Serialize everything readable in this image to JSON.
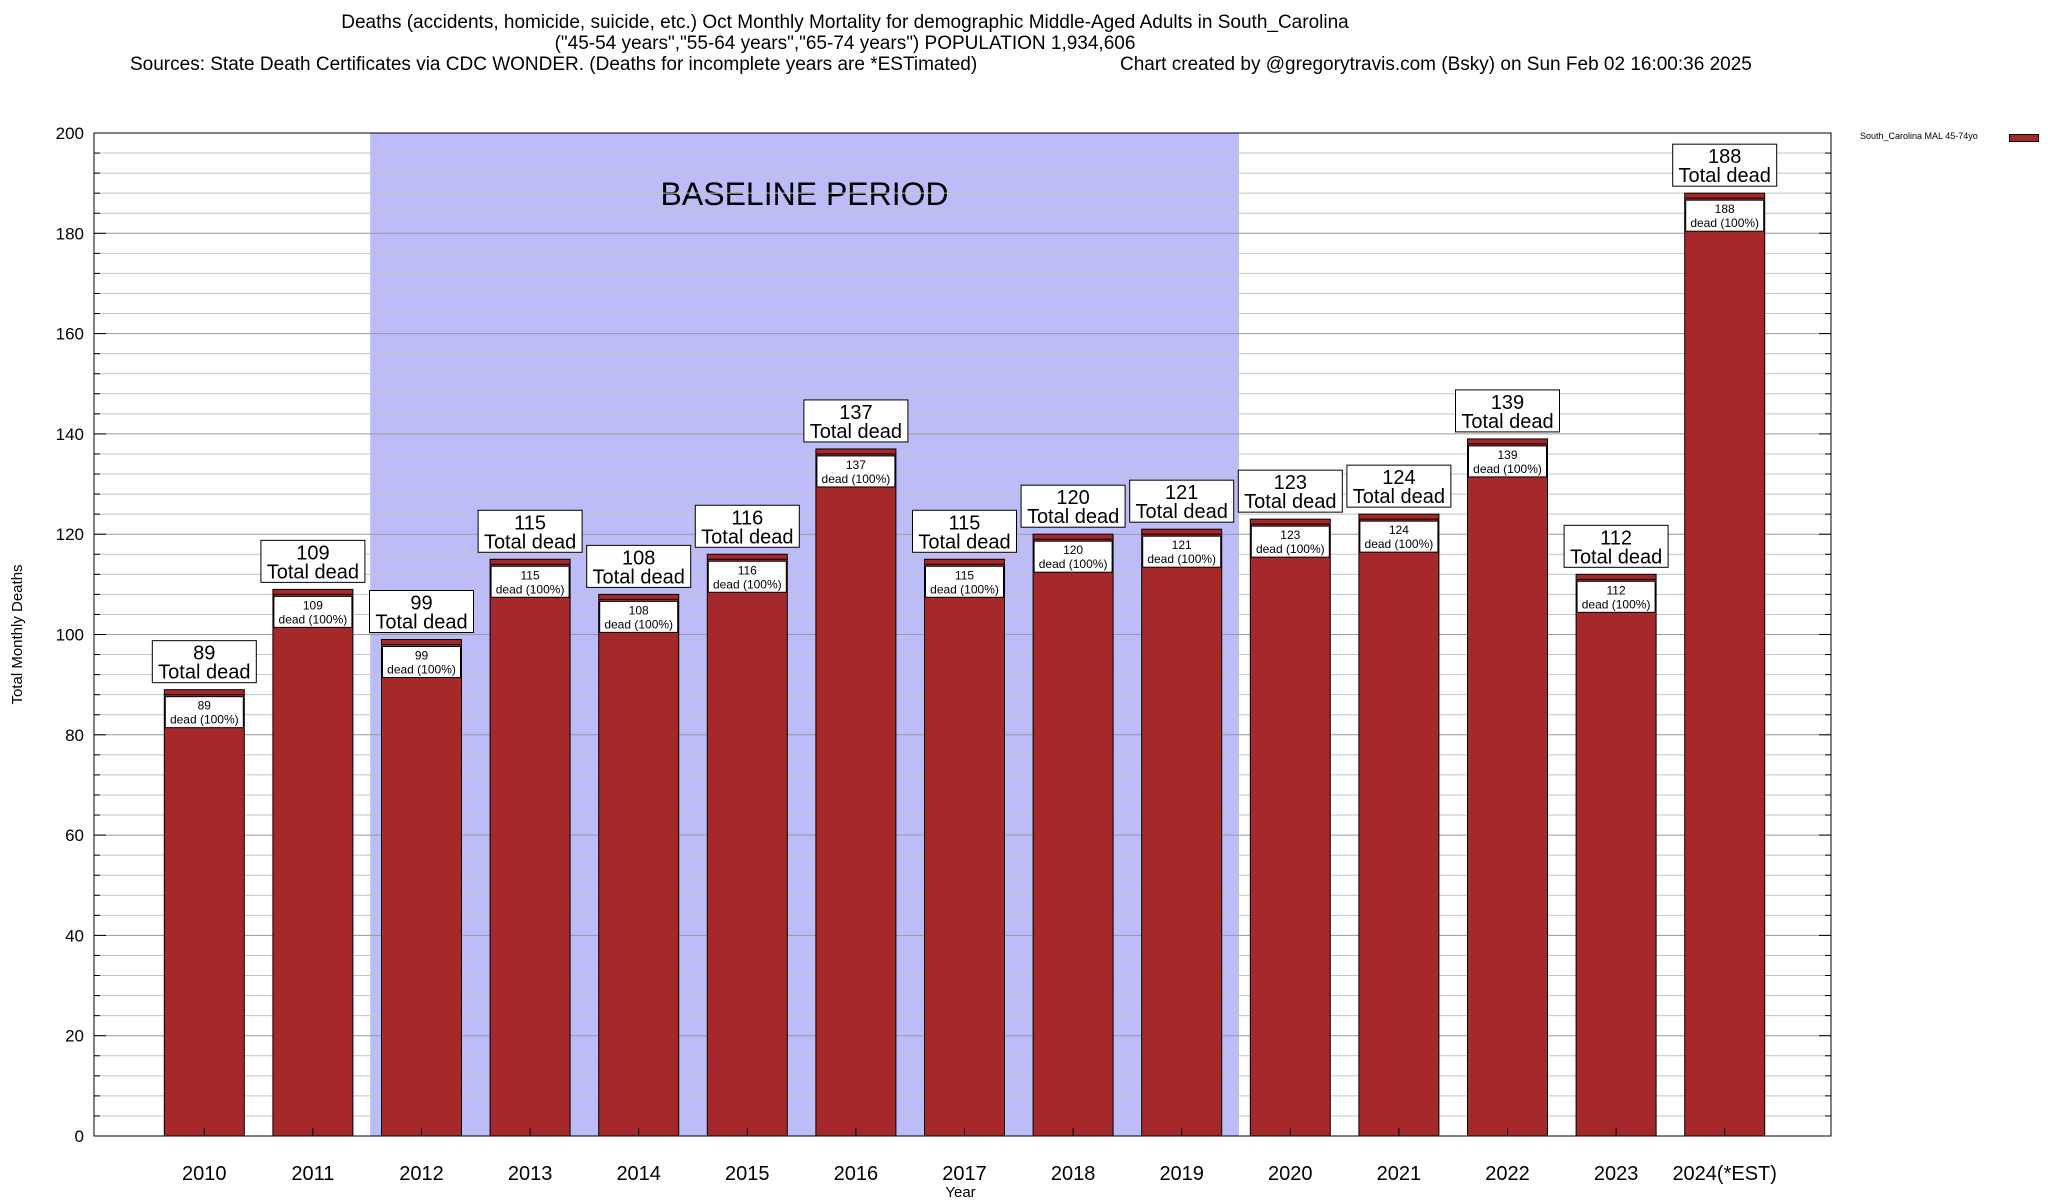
{
  "title": {
    "line1": "Deaths (accidents, homicide, suicide, etc.) Oct Monthly Mortality for demographic Middle-Aged Adults in South_Carolina",
    "line2": "(\"45-54 years\",\"55-64 years\",\"65-74 years\") POPULATION 1,934,606",
    "line3_left": "Sources: State Death Certificates via CDC WONDER. (Deaths for incomplete years are *ESTimated)",
    "line3_right": "Chart created by @gregorytravis.com (Bsky) on Sun Feb 02 16:00:36 2025"
  },
  "colors": {
    "bar": "#a5292a",
    "bar_top": "#a5292a",
    "baseline": "#bcbcf8"
  },
  "chart_data": {
    "type": "bar",
    "categories": [
      "2010",
      "2011",
      "2012",
      "2013",
      "2014",
      "2015",
      "2016",
      "2017",
      "2018",
      "2019",
      "2020",
      "2021",
      "2022",
      "2023",
      "2024(*EST)"
    ],
    "series": [
      {
        "name": "South_Carolina MAL 45-74yo",
        "values": [
          89,
          109,
          99,
          115,
          108,
          116,
          137,
          115,
          120,
          121,
          123,
          124,
          139,
          112,
          188
        ]
      }
    ],
    "total_label": "Total dead",
    "inner_label": "dead (100%)",
    "xlabel": "Year",
    "ylabel": "Total Monthly Deaths",
    "ylim": [
      0,
      200
    ],
    "yticks": [
      0,
      20,
      40,
      60,
      80,
      100,
      120,
      140,
      160,
      180,
      200
    ],
    "grid": true,
    "legend_position": "top-right",
    "baseline_period": {
      "label": "BASELINE PERIOD",
      "start": "2012",
      "end": "2019"
    }
  }
}
